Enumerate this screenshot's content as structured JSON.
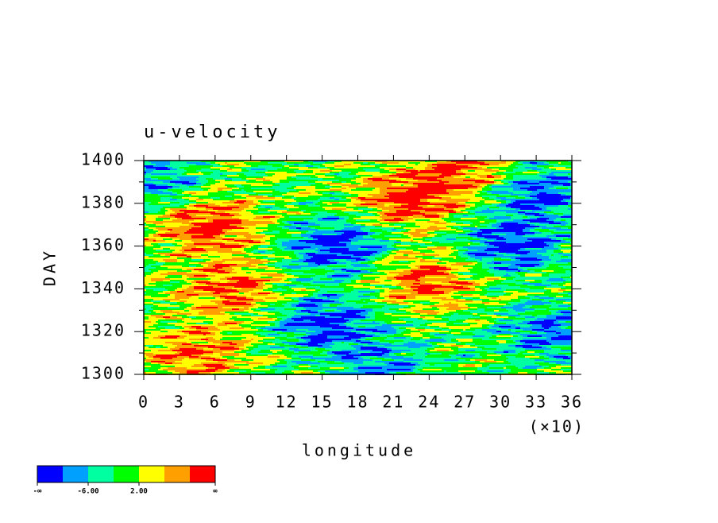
{
  "chart_data": {
    "type": "hovmoller",
    "title": "u-velocity",
    "x_label": "longitude",
    "y_label": "DAY",
    "xlim": [
      0,
      36
    ],
    "xticks": [
      0,
      3,
      6,
      9,
      12,
      15,
      18,
      21,
      24,
      27,
      30,
      33,
      36
    ],
    "x_multiplier": "(×10)",
    "ylim": [
      1300,
      1400
    ],
    "yticks": [
      1300,
      1320,
      1340,
      1360,
      1380,
      1400
    ],
    "colorbar": {
      "colors": [
        "#0000ff",
        "#00a0ff",
        "#00ffa0",
        "#00ff00",
        "#ffff00",
        "#ffa000",
        "#ff0000"
      ],
      "labels": [
        "-∞",
        "-6.00",
        "2.00",
        "∞"
      ]
    }
  }
}
